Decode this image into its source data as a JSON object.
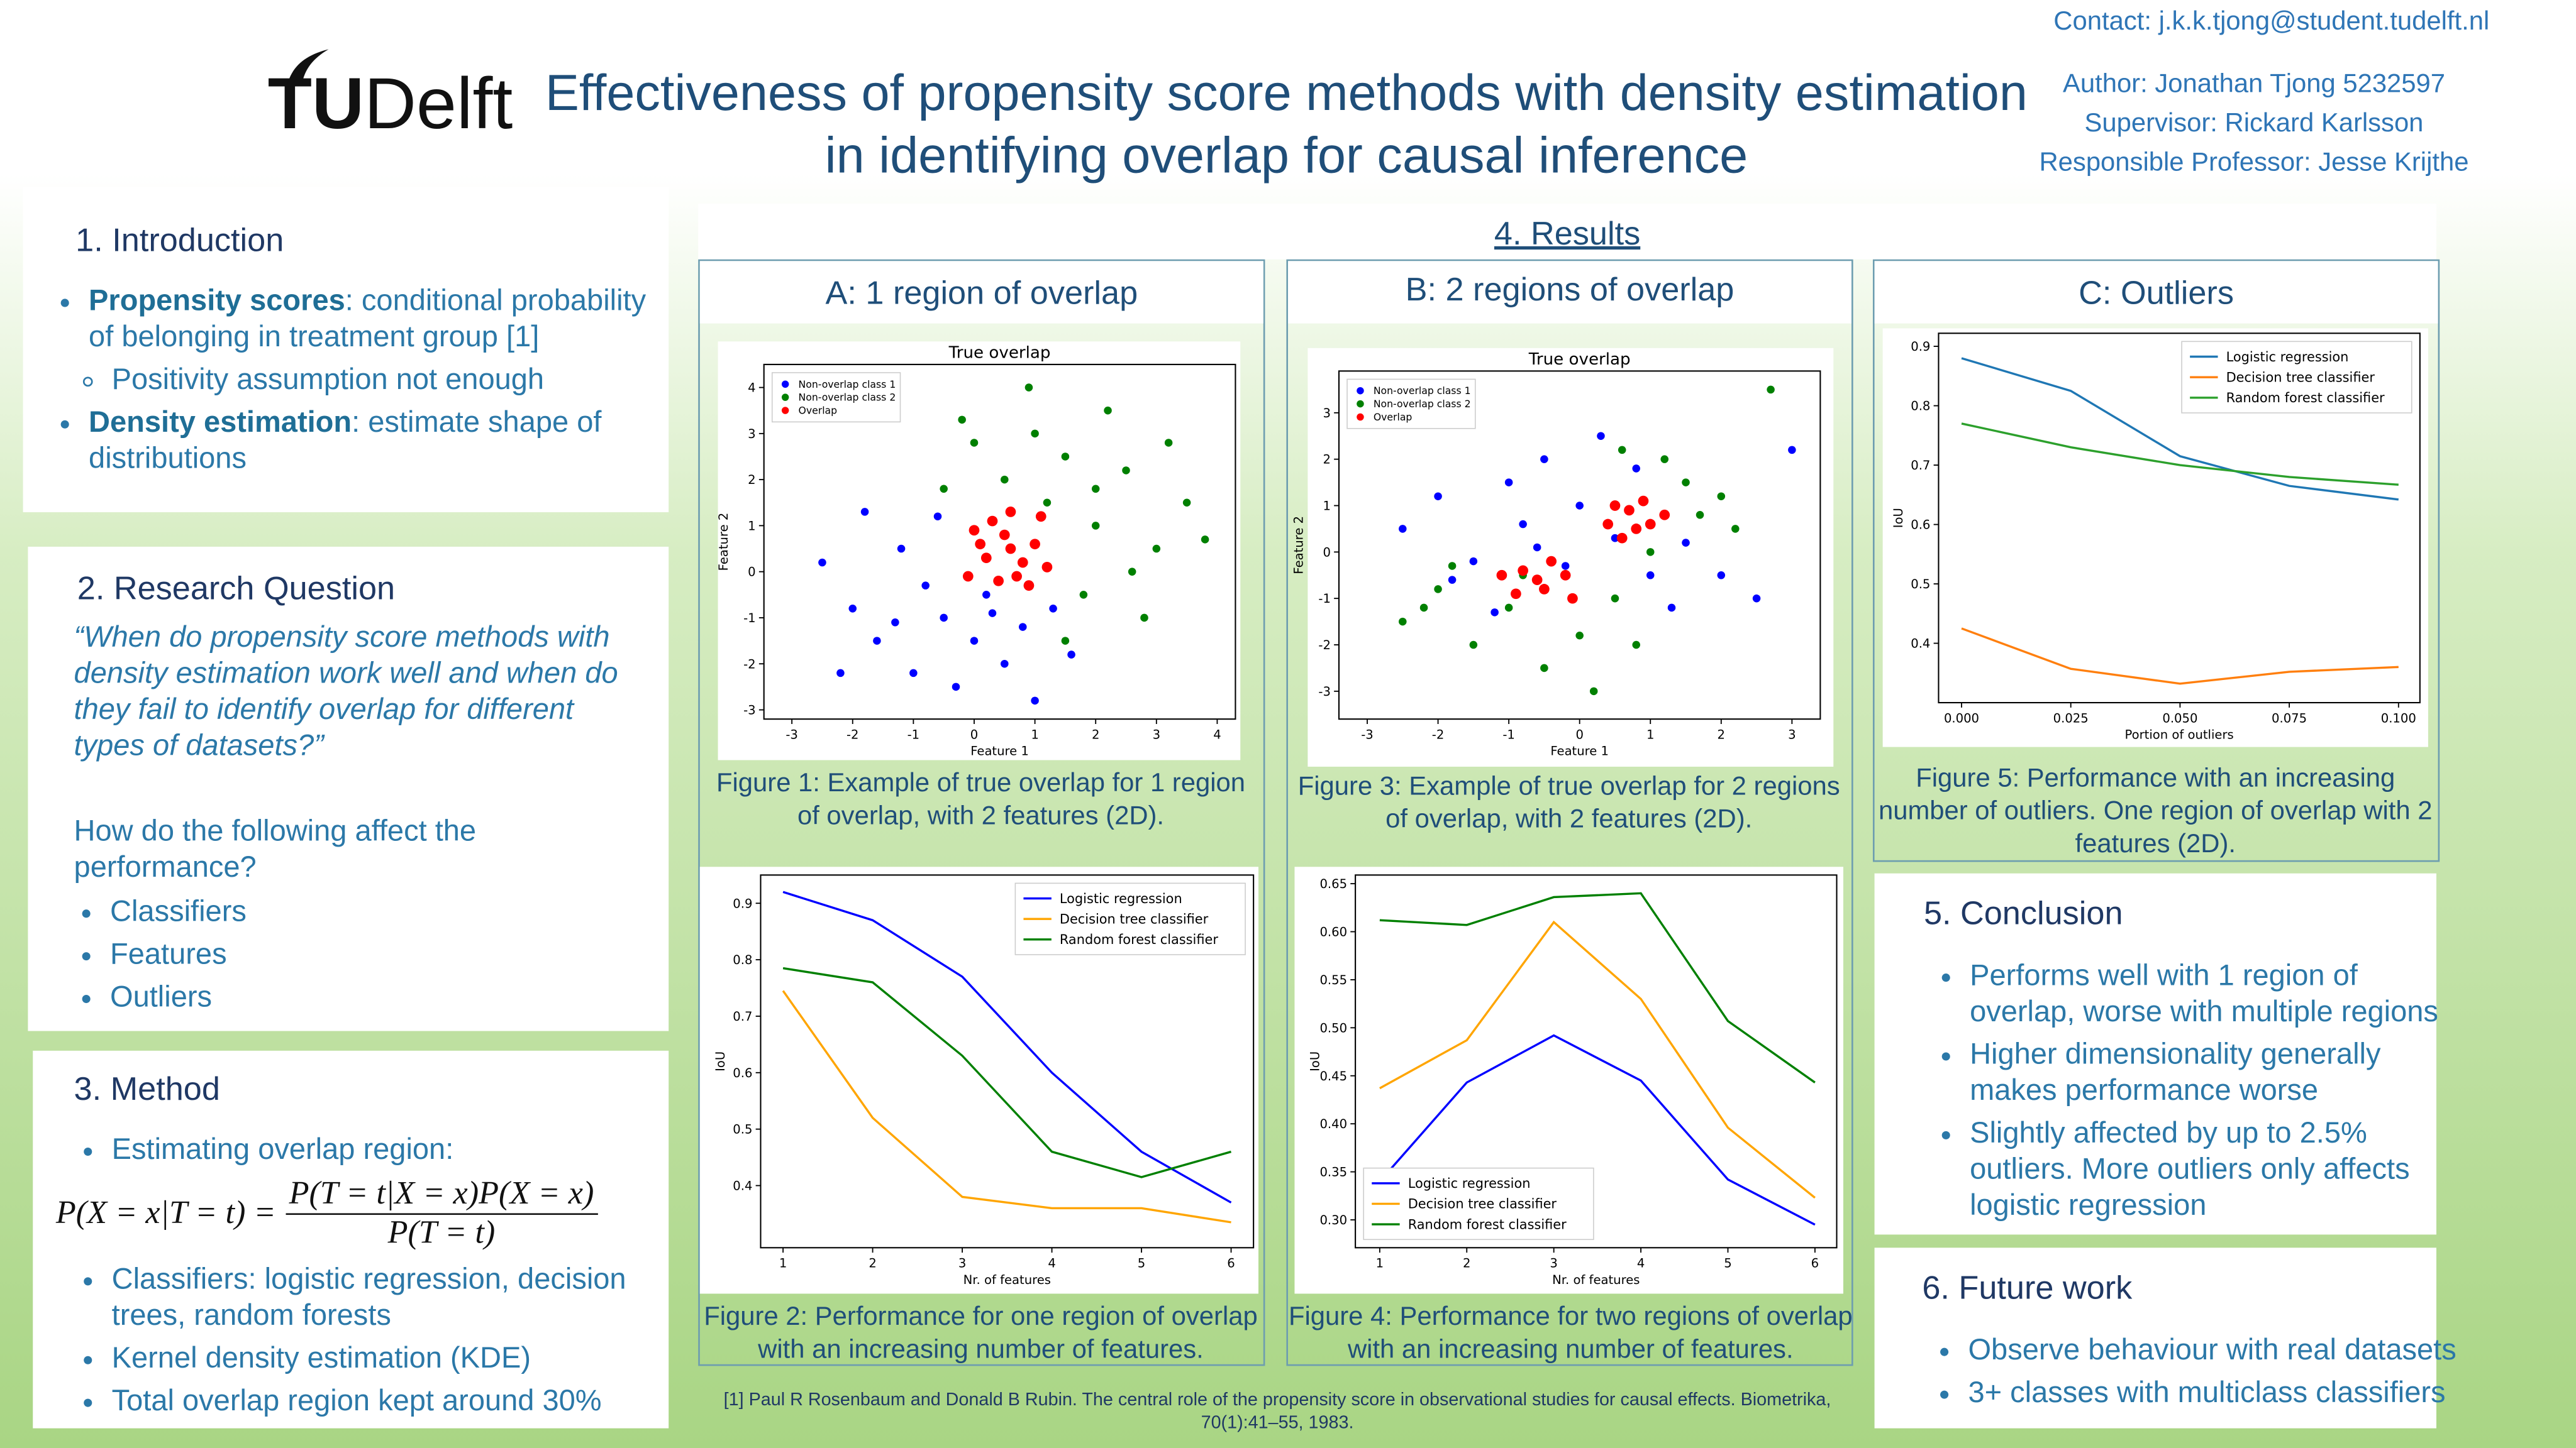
{
  "header": {
    "logo": {
      "tu": "TU",
      "delft": "Delft"
    },
    "title": "Effectiveness of propensity score methods with density estimation in identifying overlap for causal inference",
    "contact": "Contact: j.k.k.tjong@student.tudelft.nl",
    "author": "Author: Jonathan Tjong 5232597",
    "supervisor": "Supervisor: Rickard Karlsson",
    "professor": "Responsible Professor: Jesse Krijthe"
  },
  "introduction": {
    "heading": "1. Introduction",
    "items": [
      {
        "bold": "Propensity scores",
        "text": ": conditional probability of belonging in treatment group [1]",
        "subitems": [
          "Positivity assumption not enough"
        ]
      },
      {
        "bold": "Density estimation",
        "text": ": estimate shape of distributions"
      }
    ]
  },
  "research_question": {
    "heading": "2. Research Question",
    "question": "“When do propensity score methods with density estimation work well and when do they fail to identify overlap for different types of datasets?”",
    "prompt": "How do the following affect the performance?",
    "items": [
      "Classifiers",
      "Features",
      "Outliers"
    ]
  },
  "method": {
    "heading": "3. Method",
    "items": [
      "Estimating overlap region:"
    ],
    "formula": {
      "lhs": "P(X = x|T = t) =",
      "numerator": "P(T = t|X = x)P(X = x)",
      "denominator": "P(T = t)"
    },
    "items_after": [
      "Classifiers: logistic regression, decision trees, random forests",
      "Kernel density estimation (KDE)",
      "Total overlap region kept around 30%"
    ]
  },
  "results": {
    "heading": "4. Results",
    "panels": [
      {
        "title": "A: 1 region of overlap",
        "captions": [
          "Figure 1: Example of true overlap for 1 region of overlap, with 2 features (2D).",
          "Figure 2: Performance for one region of overlap with an increasing number of features."
        ]
      },
      {
        "title": "B: 2 regions of overlap",
        "captions": [
          "Figure 3: Example of true overlap for 2 regions of overlap, with 2 features (2D).",
          "Figure 4: Performance for two regions of overlap with an increasing number of features."
        ]
      },
      {
        "title": "C: Outliers",
        "captions": [
          "Figure 5: Performance with an increasing number of outliers. One region of overlap with 2 features (2D)."
        ]
      }
    ]
  },
  "conclusion": {
    "heading": "5. Conclusion",
    "items": [
      "Performs well with 1 region of overlap, worse with multiple regions",
      "Higher dimensionality generally makes performance worse",
      "Slightly affected by up to 2.5% outliers. More outliers only affects logistic regression"
    ]
  },
  "future_work": {
    "heading": "6. Future work",
    "items": [
      "Observe behaviour with real datasets",
      "3+ classes with multiclass classifiers"
    ]
  },
  "reference": "[1] Paul R Rosenbaum and Donald B Rubin. The central role of the propensity score in observational studies for causal effects. Biometrika, 70(1):41–55, 1983.",
  "chart_data": [
    {
      "type": "scatter",
      "title": "True overlap",
      "x_label": "Feature 1",
      "y_label": "Feature 2",
      "xlim": [
        -3.46,
        4.3
      ],
      "ylim": [
        -3.2,
        4.5
      ],
      "xticks": [
        -3,
        -2,
        -1,
        0,
        1,
        2,
        3,
        4
      ],
      "yticks": [
        -3,
        -2,
        -1,
        0,
        1,
        2,
        3,
        4
      ],
      "legend": "upper left",
      "series": [
        {
          "name": "Non-overlap class 1",
          "color": "#0000ff",
          "x": [
            -2.5,
            -2,
            -1.6,
            -1.2,
            -1,
            -0.8,
            -0.5,
            -0.3,
            0,
            0.2,
            0.5,
            0.8,
            1,
            1.3,
            -1.8,
            -0.6,
            1.6,
            -2.2,
            -1.3,
            0.3
          ],
          "y": [
            0.2,
            -0.8,
            -1.5,
            0.5,
            -2.2,
            -0.3,
            -1,
            -2.5,
            -1.5,
            -0.5,
            -2,
            -1.2,
            -2.8,
            -0.8,
            1.3,
            1.2,
            -1.8,
            -2.2,
            -1.1,
            -0.9
          ]
        },
        {
          "name": "Non-overlap class 2",
          "color": "#008000",
          "x": [
            2,
            1.5,
            0.5,
            3,
            2.5,
            1,
            3.5,
            1.8,
            2.8,
            0,
            -0.5,
            2.2,
            3.8,
            1.2,
            2.6,
            0.9,
            3.2,
            1.5,
            -0.2,
            2
          ],
          "y": [
            1,
            2.5,
            2,
            0.5,
            2.2,
            3,
            1.5,
            -0.5,
            -1,
            2.8,
            1.8,
            3.5,
            0.7,
            1.5,
            0,
            4,
            2.8,
            -1.5,
            3.3,
            1.8
          ]
        },
        {
          "name": "Overlap",
          "color": "#ff0000",
          "x": [
            0.2,
            0.5,
            0.8,
            0.4,
            1,
            0,
            0.6,
            1.1,
            -0.1,
            0.9,
            0.3,
            1.2,
            0.6,
            0.1,
            0.7
          ],
          "y": [
            0.3,
            0.8,
            0.2,
            -0.2,
            0.6,
            0.9,
            1.3,
            1.2,
            -0.1,
            -0.3,
            1.1,
            0.1,
            0.5,
            0.6,
            -0.1
          ]
        }
      ]
    },
    {
      "type": "line",
      "x_label": "Nr. of features",
      "y_label": "IoU",
      "x": [
        1,
        2,
        3,
        4,
        5,
        6
      ],
      "xlim": [
        0.75,
        6.25
      ],
      "ylim": [
        0.29,
        0.95
      ],
      "xticks": [
        1,
        2,
        3,
        4,
        5,
        6
      ],
      "yticks": [
        0.4,
        0.5,
        0.6,
        0.7,
        0.8,
        0.9
      ],
      "legend": "upper right",
      "series": [
        {
          "name": "Logistic regression",
          "color": "#0000ff",
          "values": [
            0.92,
            0.87,
            0.77,
            0.6,
            0.46,
            0.37
          ]
        },
        {
          "name": "Decision tree classifier",
          "color": "#ffa500",
          "values": [
            0.745,
            0.52,
            0.38,
            0.36,
            0.36,
            0.335
          ]
        },
        {
          "name": "Random forest classifier",
          "color": "#008000",
          "values": [
            0.785,
            0.76,
            0.63,
            0.46,
            0.415,
            0.46
          ]
        }
      ]
    },
    {
      "type": "scatter",
      "title": "True overlap",
      "x_label": "Feature 1",
      "y_label": "Feature 2",
      "xlim": [
        -3.4,
        3.4
      ],
      "ylim": [
        -3.6,
        3.9
      ],
      "xticks": [
        -3,
        -2,
        -1,
        0,
        1,
        2,
        3
      ],
      "yticks": [
        -3,
        -2,
        -1,
        0,
        1,
        2,
        3
      ],
      "legend": "upper left",
      "series": [
        {
          "name": "Non-overlap class 1",
          "color": "#0000ff",
          "x": [
            -2.5,
            -2,
            -1.5,
            -1,
            -0.5,
            0,
            -0.8,
            0.5,
            1,
            1.5,
            2,
            -1.2,
            0.3,
            -0.2,
            2.5,
            0.8,
            -1.8,
            1.3,
            -0.6,
            3
          ],
          "y": [
            0.5,
            1.2,
            -0.2,
            1.5,
            2,
            1,
            0.6,
            0.3,
            -0.5,
            0.2,
            -0.5,
            -1.3,
            2.5,
            -0.3,
            -1,
            1.8,
            -0.6,
            -1.2,
            0.1,
            2.2
          ]
        },
        {
          "name": "Non-overlap class 2",
          "color": "#008000",
          "x": [
            -2.5,
            -2,
            -1.5,
            -1,
            -0.5,
            0,
            0.5,
            1,
            1.5,
            2,
            2.2,
            -1.8,
            0.2,
            1.2,
            2.7,
            -0.8,
            1.7,
            0.6,
            -2.2,
            0.8
          ],
          "y": [
            -1.5,
            -0.8,
            -2,
            -1.2,
            -2.5,
            -1.8,
            -1,
            0,
            1.5,
            1.2,
            0.5,
            -0.3,
            -3,
            2,
            3.5,
            -0.5,
            0.8,
            2.2,
            -1.2,
            -2
          ]
        },
        {
          "name": "Overlap",
          "color": "#ff0000",
          "x": [
            -0.8,
            -0.5,
            -0.2,
            -0.9,
            -0.4,
            -0.1,
            -0.6,
            -1.1,
            0.4,
            0.7,
            1,
            0.6,
            0.9,
            1.2,
            0.5,
            0.8
          ],
          "y": [
            -0.4,
            -0.8,
            -0.5,
            -0.9,
            -0.2,
            -1,
            -0.6,
            -0.5,
            0.6,
            0.9,
            0.6,
            0.3,
            1.1,
            0.8,
            1,
            0.5
          ]
        }
      ]
    },
    {
      "type": "line",
      "x_label": "Nr. of features",
      "y_label": "IoU",
      "x": [
        1,
        2,
        3,
        4,
        5,
        6
      ],
      "xlim": [
        0.72,
        6.25
      ],
      "ylim": [
        0.271,
        0.659
      ],
      "xticks": [
        1,
        2,
        3,
        4,
        5,
        6
      ],
      "yticks": [
        {
          "value": 0.3,
          "label": "0.30"
        },
        0.35,
        {
          "value": 0.4,
          "label": "0.40"
        },
        0.45,
        {
          "value": 0.5,
          "label": "0.50"
        },
        0.55,
        {
          "value": 0.6,
          "label": "0.60"
        },
        0.65
      ],
      "legend": "lower left",
      "series": [
        {
          "name": "Logistic regression",
          "color": "#0000ff",
          "values": [
            0.34,
            0.443,
            0.492,
            0.445,
            0.342,
            0.295
          ]
        },
        {
          "name": "Decision tree classifier",
          "color": "#ffa500",
          "values": [
            0.437,
            0.487,
            0.61,
            0.53,
            0.396,
            0.323
          ]
        },
        {
          "name": "Random forest classifier",
          "color": "#008000",
          "values": [
            0.612,
            0.607,
            0.636,
            0.64,
            0.507,
            0.443
          ]
        }
      ]
    },
    {
      "type": "line",
      "x_label": "Portion of outliers",
      "y_label": "IoU",
      "x": [
        0,
        0.025,
        0.05,
        0.075,
        0.1
      ],
      "xlim": [
        -0.00526,
        0.1049
      ],
      "ylim": [
        0.3,
        0.922
      ],
      "xticks": [
        {
          "value": 0,
          "label": "0.000"
        },
        {
          "value": 0.025,
          "label": "0.025"
        },
        {
          "value": 0.05,
          "label": "0.050"
        },
        {
          "value": 0.075,
          "label": "0.075"
        },
        {
          "value": 0.1,
          "label": "0.100"
        }
      ],
      "yticks": [
        0.4,
        0.5,
        0.6,
        0.7,
        0.8,
        0.9
      ],
      "legend": "upper right",
      "series": [
        {
          "name": "Logistic regression",
          "color": "#1f77b4",
          "values": [
            0.88,
            0.825,
            0.715,
            0.665,
            0.642
          ]
        },
        {
          "name": "Decision tree classifier",
          "color": "#ff7f0e",
          "values": [
            0.425,
            0.357,
            0.332,
            0.352,
            0.36
          ]
        },
        {
          "name": "Random forest classifier",
          "color": "#2ca02c",
          "values": [
            0.77,
            0.73,
            0.7,
            0.68,
            0.667
          ]
        }
      ]
    }
  ]
}
